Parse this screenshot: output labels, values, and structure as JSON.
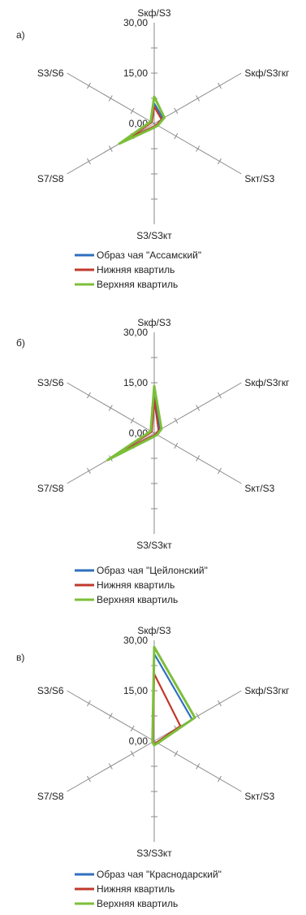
{
  "charts": [
    {
      "panel_label": "а)",
      "legend": [
        {
          "label": "Образ чая \"Ассамский\"",
          "color": "#2f6fbf"
        },
        {
          "label": "Нижняя квартиль",
          "color": "#c0392b"
        },
        {
          "label": "Верхняя квартиль",
          "color": "#7cbf3a"
        }
      ]
    },
    {
      "panel_label": "б)",
      "legend": [
        {
          "label": "Образ чая \"Цейлонский\"",
          "color": "#2f6fbf"
        },
        {
          "label": "Нижняя квартиль",
          "color": "#c0392b"
        },
        {
          "label": "Верхняя квартиль",
          "color": "#7cbf3a"
        }
      ]
    },
    {
      "panel_label": "в)",
      "legend": [
        {
          "label": "Образ чая \"Краснодарский\"",
          "color": "#2f6fbf"
        },
        {
          "label": "Нижняя квартиль",
          "color": "#c0392b"
        },
        {
          "label": "Верхняя квартиль",
          "color": "#7cbf3a"
        }
      ]
    }
  ],
  "chart_data": [
    {
      "type": "radar",
      "axes": [
        "Sкф/S3",
        "Sкф/S3гкг",
        "Sкт/S3",
        "S3/S3кт",
        "S7/S8",
        "S3/S6"
      ],
      "tick_labels": [
        "0,00",
        "15,00",
        "30,00"
      ],
      "range": [
        0,
        30
      ],
      "series": [
        {
          "name": "Образ чая \"Ассамский\"",
          "color": "#2f6fbf",
          "values": [
            6,
            3,
            1,
            1,
            11,
            1
          ]
        },
        {
          "name": "Нижняя квартиль",
          "color": "#c0392b",
          "values": [
            5,
            2.5,
            0.8,
            0.8,
            9,
            0.8
          ]
        },
        {
          "name": "Верхняя квартиль",
          "color": "#7cbf3a",
          "values": [
            8,
            3.5,
            1.2,
            1.2,
            12,
            1.2
          ]
        }
      ]
    },
    {
      "type": "radar",
      "axes": [
        "Sкф/S3",
        "Sкф/S3гкг",
        "Sкт/S3",
        "S3/S3кт",
        "S7/S8",
        "S3/S6"
      ],
      "tick_labels": [
        "0,00",
        "15,00",
        "30,00"
      ],
      "range": [
        0,
        30
      ],
      "series": [
        {
          "name": "Образ чая \"Цейлонский\"",
          "color": "#2f6fbf",
          "values": [
            13,
            2,
            0.8,
            0.8,
            14,
            1
          ]
        },
        {
          "name": "Нижняя квартиль",
          "color": "#c0392b",
          "values": [
            10,
            1.5,
            0.6,
            0.6,
            13,
            0.8
          ]
        },
        {
          "name": "Верхняя квартиль",
          "color": "#7cbf3a",
          "values": [
            14,
            2.5,
            1,
            1,
            16,
            1.2
          ]
        }
      ]
    },
    {
      "type": "radar",
      "axes": [
        "Sкф/S3",
        "Sкф/S3гкг",
        "Sкт/S3",
        "S3/S3кт",
        "S7/S8",
        "S3/S6"
      ],
      "tick_labels": [
        "0,00",
        "15,00",
        "30,00"
      ],
      "range": [
        0,
        30
      ],
      "series": [
        {
          "name": "Образ чая \"Краснодарский\"",
          "color": "#2f6fbf",
          "values": [
            26,
            13,
            1,
            1,
            0.5,
            0.5
          ]
        },
        {
          "name": "Нижняя квартиль",
          "color": "#c0392b",
          "values": [
            20,
            9,
            0.8,
            0.8,
            0.4,
            0.4
          ]
        },
        {
          "name": "Верхняя квартиль",
          "color": "#7cbf3a",
          "values": [
            28,
            14,
            1.2,
            1.2,
            0.6,
            0.6
          ]
        }
      ]
    }
  ]
}
